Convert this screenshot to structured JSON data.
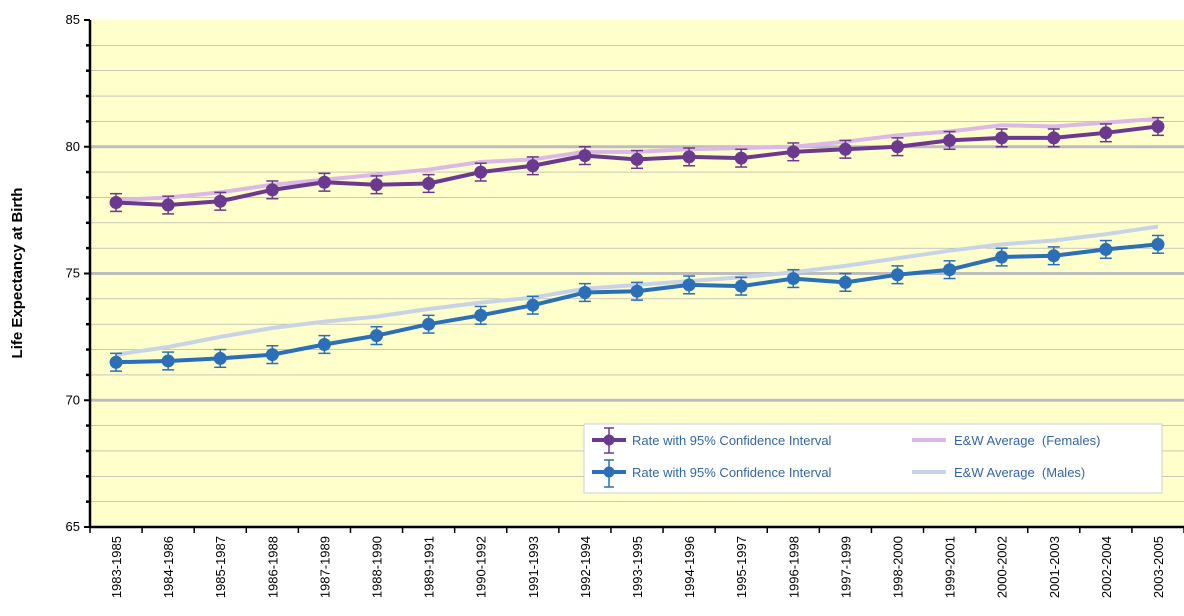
{
  "chart_data": {
    "type": "line",
    "ylabel": "Life Expectancy at Birth",
    "xlabel": "",
    "ylim": [
      65,
      85
    ],
    "yticks": [
      65,
      70,
      75,
      80,
      85
    ],
    "categories": [
      "1983-1985",
      "1984-1986",
      "1985-1987",
      "1986-1988",
      "1987-1989",
      "1988-1990",
      "1989-1991",
      "1990-1992",
      "1991-1993",
      "1992-1994",
      "1993-1995",
      "1994-1996",
      "1995-1997",
      "1996-1998",
      "1997-1999",
      "1998-2000",
      "1999-2001",
      "2000-2002",
      "2001-2003",
      "2002-2004",
      "2003-2005"
    ],
    "grid": true,
    "legend_position": "bottom-right",
    "series": [
      {
        "name": "Rate with 95% Confidence Interval",
        "kind": "rate",
        "color": "#6b3a8e",
        "values": [
          77.8,
          77.7,
          77.85,
          78.3,
          78.6,
          78.5,
          78.55,
          79.0,
          79.25,
          79.65,
          79.5,
          79.6,
          79.55,
          79.8,
          79.9,
          80.0,
          80.25,
          80.35,
          80.35,
          80.55,
          80.8
        ],
        "ci_half_width": 0.35
      },
      {
        "name": "Rate with 95% Confidence Interval",
        "kind": "rate",
        "color": "#2a6fb7",
        "values": [
          71.5,
          71.55,
          71.65,
          71.8,
          72.2,
          72.55,
          73.0,
          73.35,
          73.75,
          74.25,
          74.3,
          74.55,
          74.5,
          74.8,
          74.65,
          74.95,
          75.15,
          75.65,
          75.7,
          75.95,
          76.15
        ],
        "ci_half_width": 0.35
      },
      {
        "name": "E&W Average  (Females)",
        "kind": "average",
        "color": "#dcb8e6",
        "values": [
          77.9,
          78.0,
          78.2,
          78.5,
          78.7,
          78.9,
          79.1,
          79.4,
          79.5,
          79.8,
          79.8,
          79.9,
          79.95,
          80.0,
          80.2,
          80.45,
          80.6,
          80.85,
          80.8,
          80.95,
          81.1
        ]
      },
      {
        "name": "E&W Average  (Males)",
        "kind": "average",
        "color": "#c8d4e6",
        "values": [
          71.8,
          72.1,
          72.5,
          72.85,
          73.1,
          73.3,
          73.6,
          73.85,
          74.05,
          74.4,
          74.55,
          74.7,
          74.85,
          75.05,
          75.3,
          75.6,
          75.9,
          76.15,
          76.3,
          76.55,
          76.85
        ]
      }
    ]
  }
}
